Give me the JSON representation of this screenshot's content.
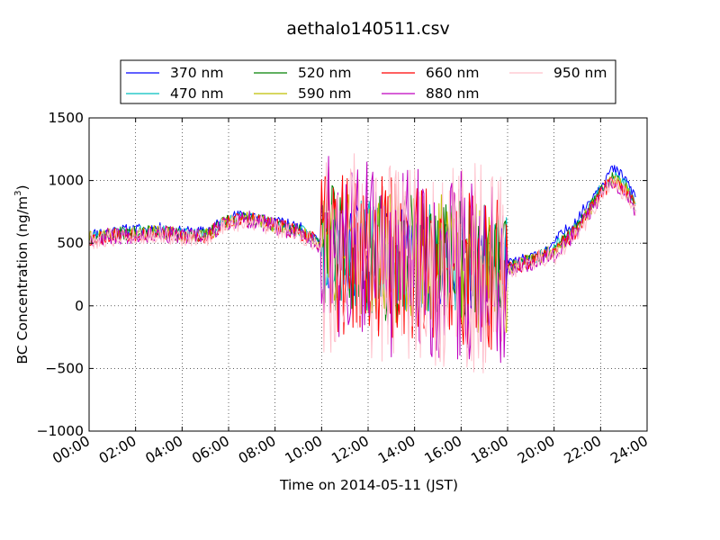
{
  "chart_data": {
    "type": "line",
    "title": "aethalo140511.csv",
    "xlabel": "Time on 2014-05-11 (JST)",
    "ylabel": "BC Concentration (ng/m",
    "ylabel_sup": "3",
    "ylabel_end": ")",
    "xlim_hours": [
      0,
      24
    ],
    "ylim": [
      -1000,
      1500
    ],
    "xticks": [
      {
        "hour": 0,
        "label": "00:00"
      },
      {
        "hour": 2,
        "label": "02:00"
      },
      {
        "hour": 4,
        "label": "04:00"
      },
      {
        "hour": 6,
        "label": "06:00"
      },
      {
        "hour": 8,
        "label": "08:00"
      },
      {
        "hour": 10,
        "label": "10:00"
      },
      {
        "hour": 12,
        "label": "12:00"
      },
      {
        "hour": 14,
        "label": "14:00"
      },
      {
        "hour": 16,
        "label": "16:00"
      },
      {
        "hour": 18,
        "label": "18:00"
      },
      {
        "hour": 20,
        "label": "20:00"
      },
      {
        "hour": 22,
        "label": "22:00"
      },
      {
        "hour": 24,
        "label": "24:00"
      }
    ],
    "yticks": [
      {
        "value": 1500,
        "label": "1500"
      },
      {
        "value": 1000,
        "label": "1000"
      },
      {
        "value": 500,
        "label": "500"
      },
      {
        "value": 0,
        "label": "0"
      },
      {
        "value": -500,
        "label": "−500"
      },
      {
        "value": -1000,
        "label": "−1000"
      }
    ],
    "grid": true,
    "legend_position": "top-center",
    "base_series": {
      "hours": [
        0,
        1,
        2,
        3,
        4,
        5,
        6,
        7,
        8,
        9,
        10,
        11,
        12,
        13,
        14,
        15,
        16,
        17,
        18,
        19,
        20,
        21,
        22,
        22.5,
        23,
        23.5
      ],
      "values": [
        540,
        570,
        580,
        590,
        560,
        560,
        680,
        700,
        640,
        600,
        490,
        420,
        390,
        370,
        380,
        340,
        330,
        310,
        300,
        360,
        440,
        620,
        900,
        1020,
        960,
        800
      ]
    },
    "series": [
      {
        "name": "370 nm",
        "color": "#0000ff",
        "bias": 60,
        "noise": 0.35,
        "seed": 11
      },
      {
        "name": "470 nm",
        "color": "#00bfbf",
        "bias": 20,
        "noise": 0.45,
        "seed": 23
      },
      {
        "name": "520 nm",
        "color": "#008000",
        "bias": 5,
        "noise": 0.55,
        "seed": 37
      },
      {
        "name": "590 nm",
        "color": "#bfbf00",
        "bias": -5,
        "noise": 0.6,
        "seed": 41
      },
      {
        "name": "660 nm",
        "color": "#ff0000",
        "bias": -10,
        "noise": 0.75,
        "seed": 53
      },
      {
        "name": "880 nm",
        "color": "#bf00bf",
        "bias": -20,
        "noise": 0.9,
        "seed": 67
      },
      {
        "name": "950 nm",
        "color": "#ffc0cb",
        "bias": -40,
        "noise": 1.0,
        "seed": 79
      }
    ],
    "noisy_interval_hours": [
      10,
      18
    ],
    "series_end_hour": 23.5
  }
}
